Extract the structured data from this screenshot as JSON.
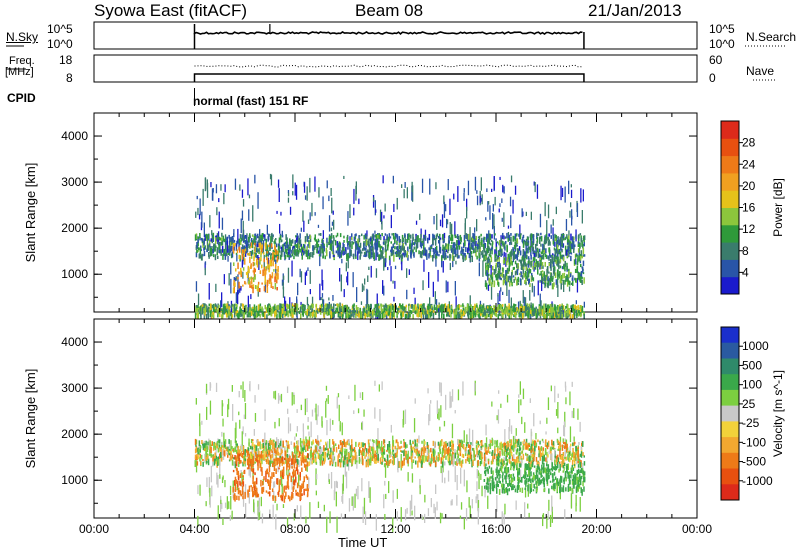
{
  "header": {
    "title": "Syowa East (fitACF)",
    "beam": "Beam 08",
    "date": "21/Jan/2013"
  },
  "top_panels": {
    "nsky_label": "N.Sky",
    "nsearch_label": "N.Search",
    "nsky_ticks": [
      "10^5",
      "10^0"
    ],
    "freq_label": "Freq.",
    "freq_unit": "[MHz]",
    "freq_ticks": [
      "18",
      "8"
    ],
    "nave_label": "Nave",
    "nave_ticks": [
      "60",
      "0"
    ],
    "cpid_label": "CPID",
    "cpid_value": "normal (fast) 151 RF"
  },
  "time_axis": {
    "label": "Time UT",
    "ticks": [
      "00:00",
      "04:00",
      "08:00",
      "12:00",
      "16:00",
      "20:00",
      "00:00"
    ]
  },
  "chart_data": [
    {
      "type": "heatmap",
      "title": "Power",
      "xlabel": "Time UT",
      "ylabel": "Slant Range [km]",
      "x_range_hours": [
        0,
        24
      ],
      "ylim": [
        180,
        4500
      ],
      "y_ticks": [
        1000,
        2000,
        3000,
        4000
      ],
      "colorbar": {
        "label": "Power [dB]",
        "ticks": [
          4,
          8,
          12,
          16,
          20,
          24,
          28
        ],
        "colors": [
          "#1a1acc",
          "#2955a8",
          "#3a7c6c",
          "#2f9a3a",
          "#8cc63c",
          "#e6c21a",
          "#f0a020",
          "#ee7a18",
          "#e85010",
          "#dd2a1a"
        ]
      },
      "data_coverage_hours": [
        4.0,
        19.5
      ],
      "echo_bands": [
        {
          "t_start": 4.0,
          "t_end": 19.5,
          "range_center_km": 1650,
          "range_width_km": 250,
          "power_db": 6
        },
        {
          "t_start": 5.5,
          "t_end": 7.3,
          "range_center_km": 1200,
          "range_width_km": 500,
          "power_db": 18
        },
        {
          "t_start": 4.0,
          "t_end": 19.5,
          "range_center_km": 250,
          "range_width_km": 120,
          "power_db": 10
        },
        {
          "t_start": 15.5,
          "t_end": 19.5,
          "range_center_km": 1100,
          "range_width_km": 300,
          "power_db": 8
        }
      ]
    },
    {
      "type": "heatmap",
      "title": "Velocity",
      "xlabel": "Time UT",
      "ylabel": "Slant Range [km]",
      "x_range_hours": [
        0,
        24
      ],
      "ylim": [
        180,
        4500
      ],
      "y_ticks": [
        1000,
        2000,
        3000,
        4000
      ],
      "colorbar": {
        "label": "Velocity [m s^-1]",
        "ticks": [
          1000,
          500,
          100,
          25,
          -25,
          -100,
          -500,
          -1000
        ],
        "colors": [
          "#1a2fcc",
          "#2a5aa0",
          "#2f8a6a",
          "#3aa84a",
          "#7ccf40",
          "#c8c8c8",
          "#f2d23a",
          "#f2a830",
          "#ee7a18",
          "#e85010",
          "#dd2a1a"
        ]
      },
      "data_coverage_hours": [
        4.0,
        19.5
      ],
      "echo_bands": [
        {
          "t_start": 4.0,
          "t_end": 19.5,
          "range_center_km": 1650,
          "range_width_km": 250,
          "velocity_ms": 0
        },
        {
          "t_start": 5.5,
          "t_end": 8.5,
          "range_center_km": 1150,
          "range_width_km": 500,
          "velocity_ms": -400
        },
        {
          "t_start": 15.5,
          "t_end": 19.5,
          "range_center_km": 1100,
          "range_width_km": 300,
          "velocity_ms": 200
        }
      ]
    }
  ]
}
